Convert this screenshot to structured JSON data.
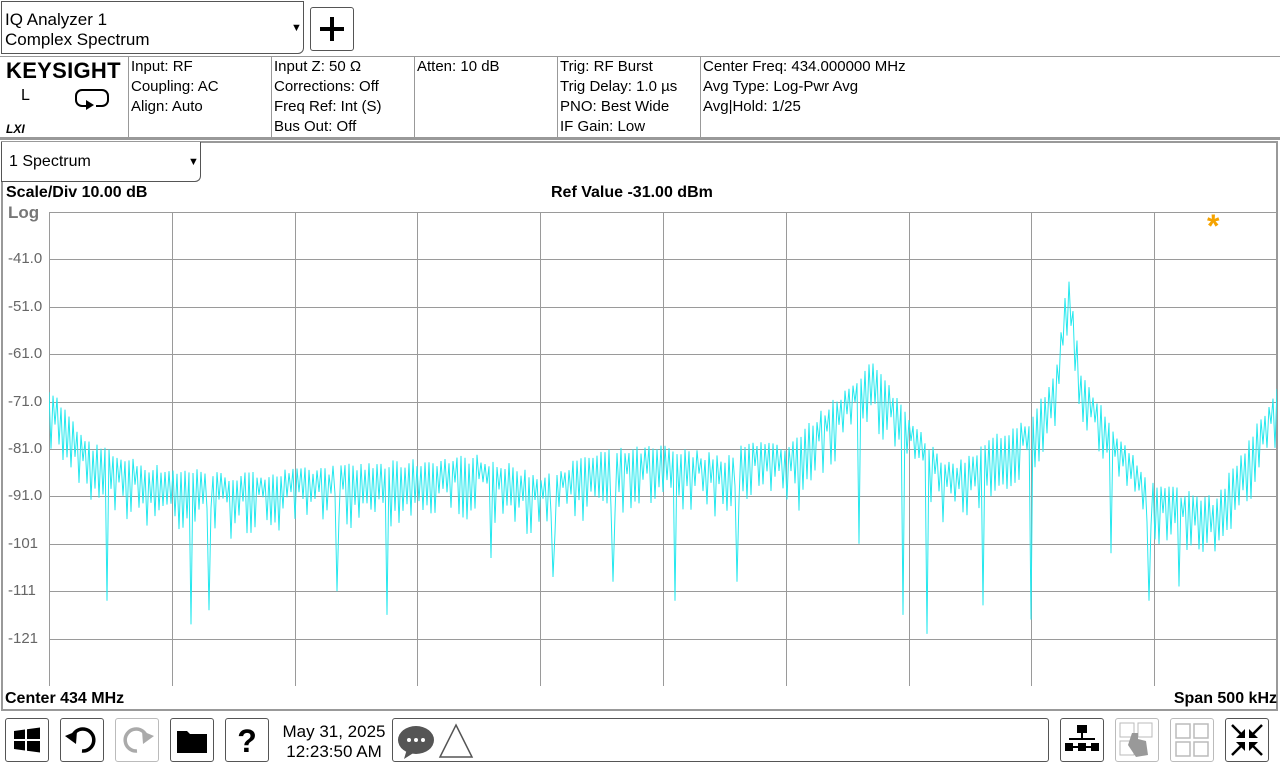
{
  "mode": {
    "line1": "IQ Analyzer 1",
    "line2": "Complex Spectrum"
  },
  "brand": {
    "logo": "KEYSIGHT",
    "local_indicator": "L",
    "lxi": "LXI"
  },
  "settings": {
    "col1": [
      "Input: RF",
      "Coupling: AC",
      "Align: Auto"
    ],
    "col2": [
      "Input Z: 50 Ω",
      "Corrections: Off",
      "Freq Ref: Int (S)",
      "Bus Out: Off"
    ],
    "col3": [
      "Atten: 10 dB"
    ],
    "col4": [
      "Trig: RF Burst",
      "Trig Delay: 1.0 µs",
      "PNO: Best Wide",
      "IF Gain: Low"
    ],
    "col5": [
      "Center Freq: 434.000000 MHz",
      "Avg Type: Log-Pwr Avg",
      "Avg|Hold: 1/25"
    ]
  },
  "window": {
    "select": "1 Spectrum"
  },
  "trace_header": {
    "scale": "Scale/Div 10.00 dB",
    "ref": "Ref Value -31.00 dBm",
    "log": "Log",
    "marker": "*"
  },
  "footer": {
    "center": "Center 434 MHz",
    "span": "Span 500 kHz"
  },
  "clock": {
    "date": "May 31, 2025",
    "time": "12:23:50 AM"
  },
  "colors": {
    "trace": "#25E8EE",
    "grid": "#9a9a9a",
    "marker": "#F5A300"
  },
  "chart_data": {
    "type": "line",
    "ref_value": -31,
    "scale_per_div": 10,
    "y_unit": "dBm",
    "ylim": [
      -131,
      -31
    ],
    "ytick_labels": [
      "-41.0",
      "-51.0",
      "-61.0",
      "-71.0",
      "-81.0",
      "-91.0",
      "-101",
      "-111",
      "-121"
    ],
    "x_center": "434 MHz",
    "x_span": "500 kHz",
    "grid": true,
    "envelope": {
      "x": [
        0,
        3,
        8,
        15,
        25,
        35,
        40,
        45,
        50,
        55,
        58,
        60,
        62,
        64,
        67,
        70,
        73,
        75,
        77,
        80,
        82,
        83,
        84,
        86,
        88,
        90,
        95,
        100
      ],
      "y": [
        -69,
        -81,
        -86,
        -88,
        -86,
        -84,
        -88,
        -83,
        -82,
        -84,
        -80,
        -83,
        -77,
        -72,
        -64,
        -75,
        -86,
        -84,
        -80,
        -76,
        -66,
        -45,
        -66,
        -75,
        -83,
        -90,
        -93,
        -70
      ]
    },
    "nulls": [
      {
        "x": 4.7,
        "y": -113
      },
      {
        "x": 11.5,
        "y": -118
      },
      {
        "x": 13,
        "y": -115
      },
      {
        "x": 23.5,
        "y": -111
      },
      {
        "x": 27.5,
        "y": -116
      },
      {
        "x": 36,
        "y": -104
      },
      {
        "x": 41,
        "y": -108
      },
      {
        "x": 46,
        "y": -109
      },
      {
        "x": 51,
        "y": -113
      },
      {
        "x": 56,
        "y": -109
      },
      {
        "x": 61,
        "y": -94
      },
      {
        "x": 66,
        "y": -101
      },
      {
        "x": 69.5,
        "y": -116
      },
      {
        "x": 71.5,
        "y": -120
      },
      {
        "x": 76,
        "y": -114
      },
      {
        "x": 80,
        "y": -117
      },
      {
        "x": 86.5,
        "y": -103
      },
      {
        "x": 89.5,
        "y": -113
      },
      {
        "x": 92,
        "y": -110
      }
    ]
  }
}
